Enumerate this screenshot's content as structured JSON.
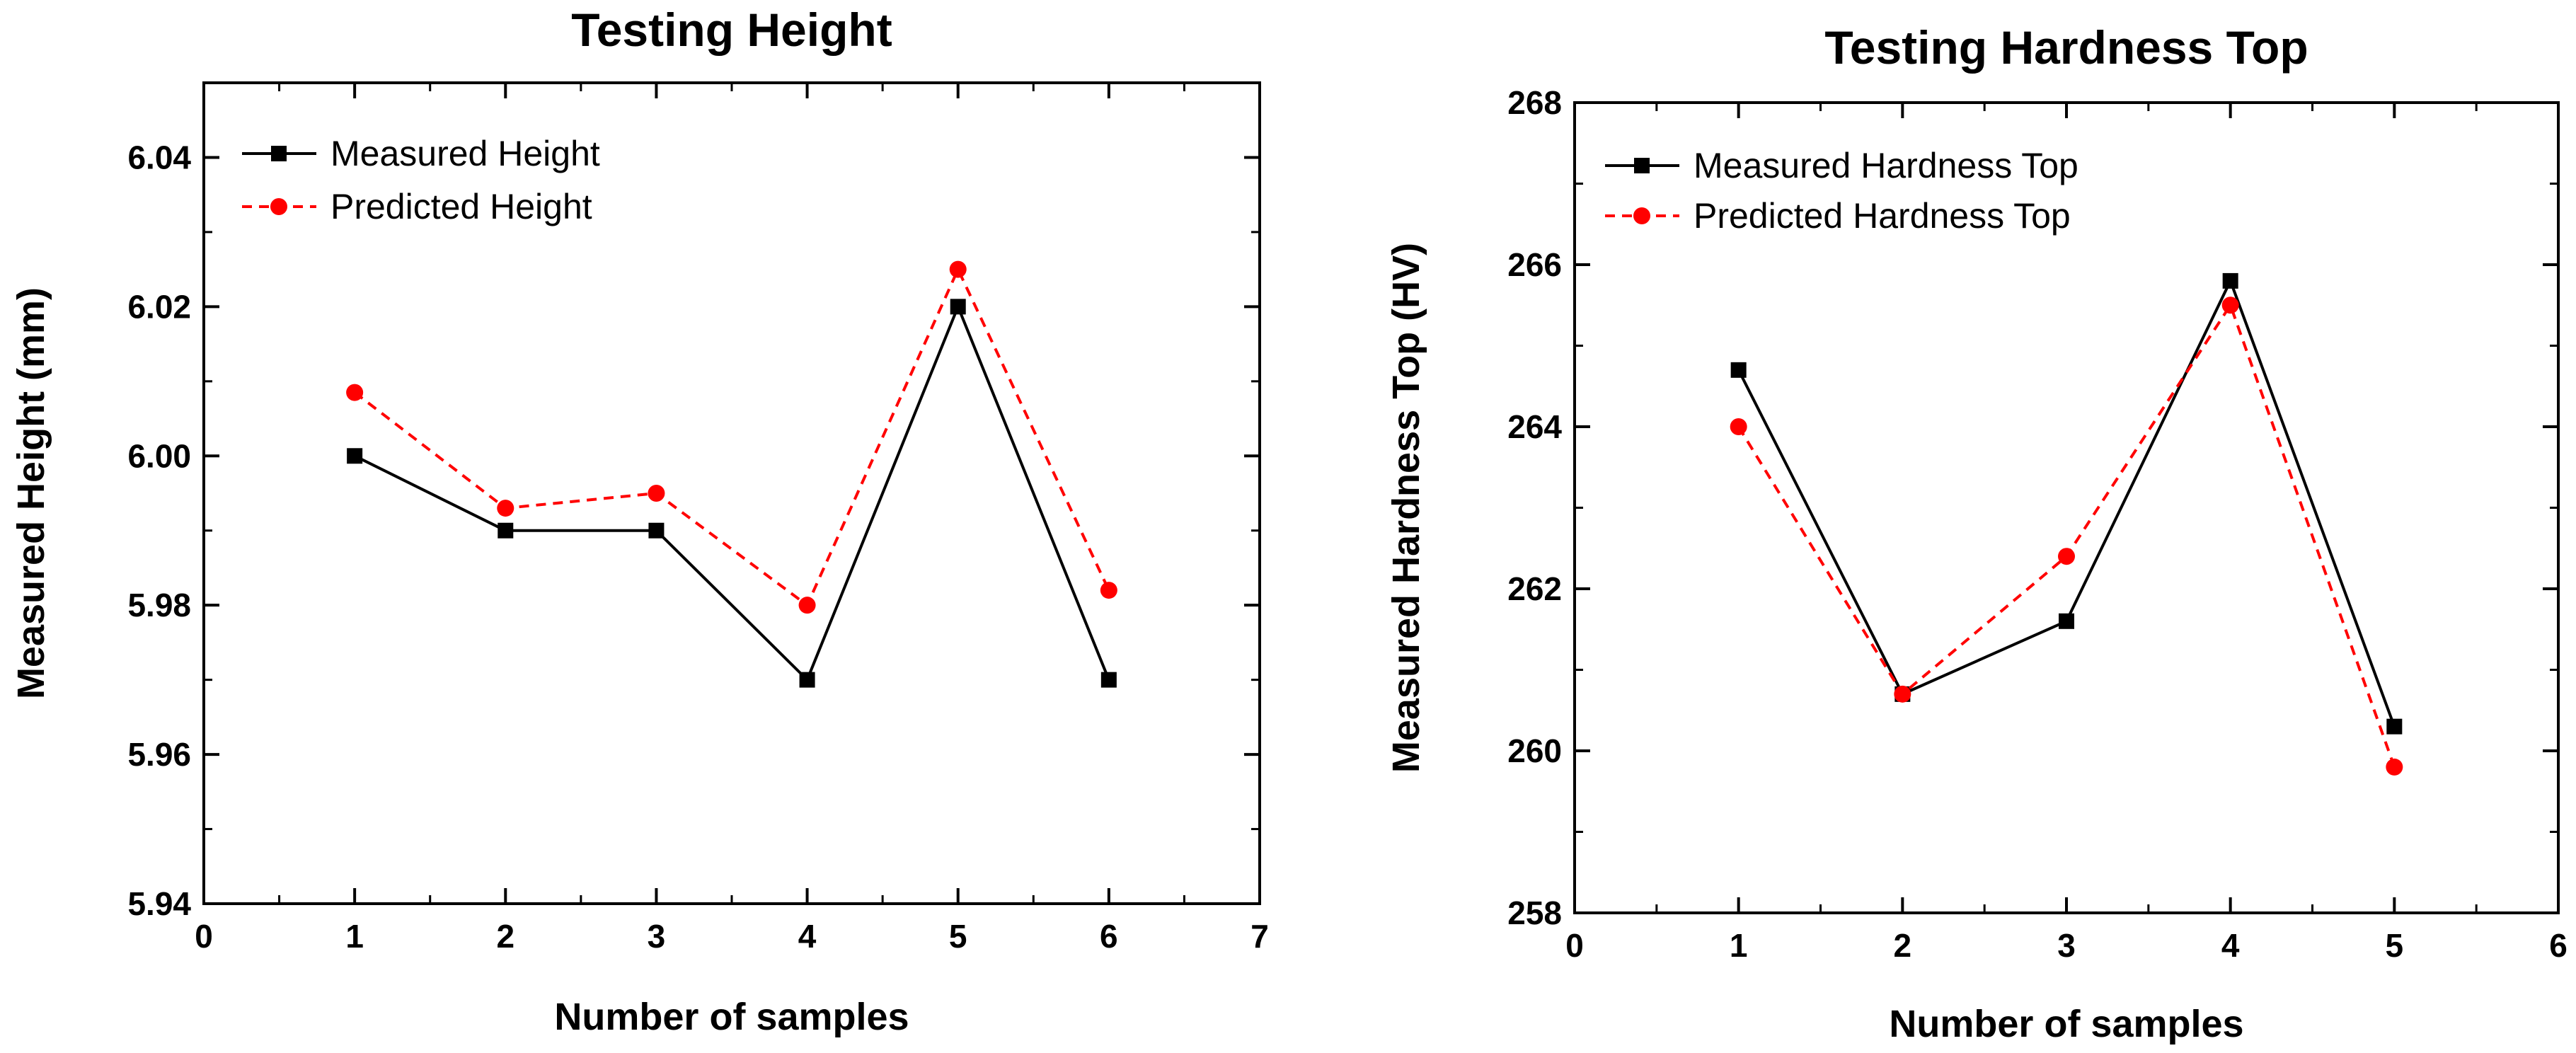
{
  "chart_data": [
    {
      "type": "line",
      "title": "Testing Height",
      "xlabel": "Number of samples",
      "ylabel": "Measured Height (mm)",
      "xlim": [
        0,
        7
      ],
      "ylim": [
        5.94,
        6.05
      ],
      "xticks": [
        "0",
        "1",
        "2",
        "3",
        "4",
        "5",
        "6",
        "7"
      ],
      "yticks": [
        "5.94",
        "5.96",
        "5.98",
        "6.00",
        "6.02",
        "6.04"
      ],
      "x": [
        1,
        2,
        3,
        4,
        5,
        6
      ],
      "legend_position": "top-left",
      "series": [
        {
          "name": "Measured Height",
          "color": "#000000",
          "style": "solid",
          "marker": "square",
          "values": [
            6.0,
            5.99,
            5.99,
            5.97,
            6.02,
            5.97
          ]
        },
        {
          "name": "Predicted Height",
          "color": "#ff0000",
          "style": "dashed",
          "marker": "circle",
          "values": [
            6.0085,
            5.993,
            5.995,
            5.98,
            6.025,
            5.982
          ]
        }
      ]
    },
    {
      "type": "line",
      "title": "Testing Hardness Top",
      "xlabel": "Number of samples",
      "ylabel": "Measured Hardness Top (HV)",
      "xlim": [
        0,
        6
      ],
      "ylim": [
        258,
        268
      ],
      "xticks": [
        "0",
        "1",
        "2",
        "3",
        "4",
        "5",
        "6"
      ],
      "yticks": [
        "258",
        "260",
        "262",
        "264",
        "266",
        "268"
      ],
      "x": [
        1,
        2,
        3,
        4,
        5
      ],
      "legend_position": "top-left",
      "series": [
        {
          "name": "Measured Hardness Top",
          "color": "#000000",
          "style": "solid",
          "marker": "square",
          "values": [
            264.7,
            260.7,
            261.6,
            265.8,
            260.3
          ]
        },
        {
          "name": "Predicted Hardness Top",
          "color": "#ff0000",
          "style": "dashed",
          "marker": "circle",
          "values": [
            264.0,
            260.7,
            262.4,
            265.5,
            259.8
          ]
        }
      ]
    }
  ]
}
